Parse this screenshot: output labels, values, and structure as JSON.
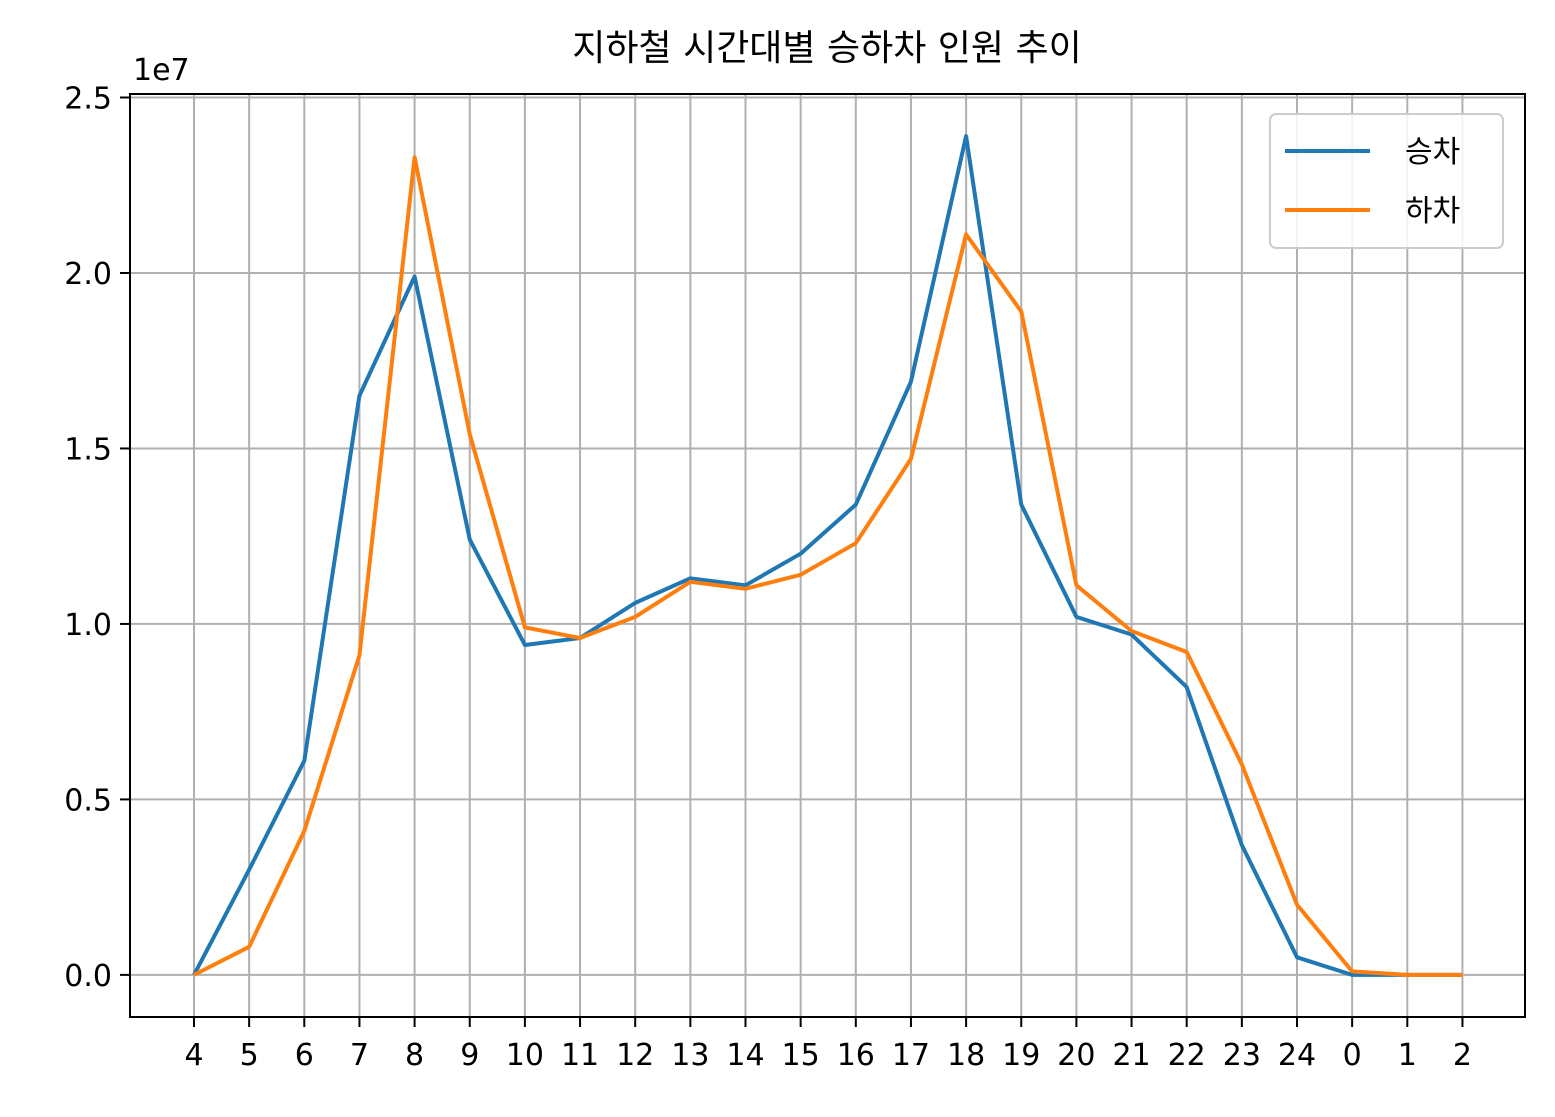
{
  "chart_data": {
    "type": "line",
    "title": "지하철 시간대별 승하차 인원 추이",
    "xlabel": "",
    "ylabel": "",
    "y_offset_text": "1e7",
    "categories": [
      "4",
      "5",
      "6",
      "7",
      "8",
      "9",
      "10",
      "11",
      "12",
      "13",
      "14",
      "15",
      "16",
      "17",
      "18",
      "19",
      "20",
      "21",
      "22",
      "23",
      "24",
      "0",
      "1",
      "2"
    ],
    "y_ticks": [
      0.0,
      0.5,
      1.0,
      1.5,
      2.0,
      2.5
    ],
    "y_tick_labels": [
      "0.0",
      "0.5",
      "1.0",
      "1.5",
      "2.0",
      "2.5"
    ],
    "ylim": [
      -0.12,
      2.51
    ],
    "grid": true,
    "legend_position": "upper right",
    "series": [
      {
        "name": "승차",
        "color": "#1f77b4",
        "values": [
          0.0,
          0.3,
          0.61,
          1.65,
          1.99,
          1.24,
          0.94,
          0.96,
          1.06,
          1.13,
          1.11,
          1.2,
          1.34,
          1.69,
          2.39,
          1.34,
          1.02,
          0.97,
          0.82,
          0.37,
          0.05,
          0.0,
          0.0,
          0.0
        ]
      },
      {
        "name": "하차",
        "color": "#ff7f0e",
        "values": [
          0.0,
          0.08,
          0.41,
          0.91,
          2.33,
          1.54,
          0.99,
          0.96,
          1.02,
          1.12,
          1.1,
          1.14,
          1.23,
          1.47,
          2.11,
          1.89,
          1.11,
          0.98,
          0.92,
          0.6,
          0.2,
          0.01,
          0.0,
          0.0
        ]
      }
    ]
  }
}
